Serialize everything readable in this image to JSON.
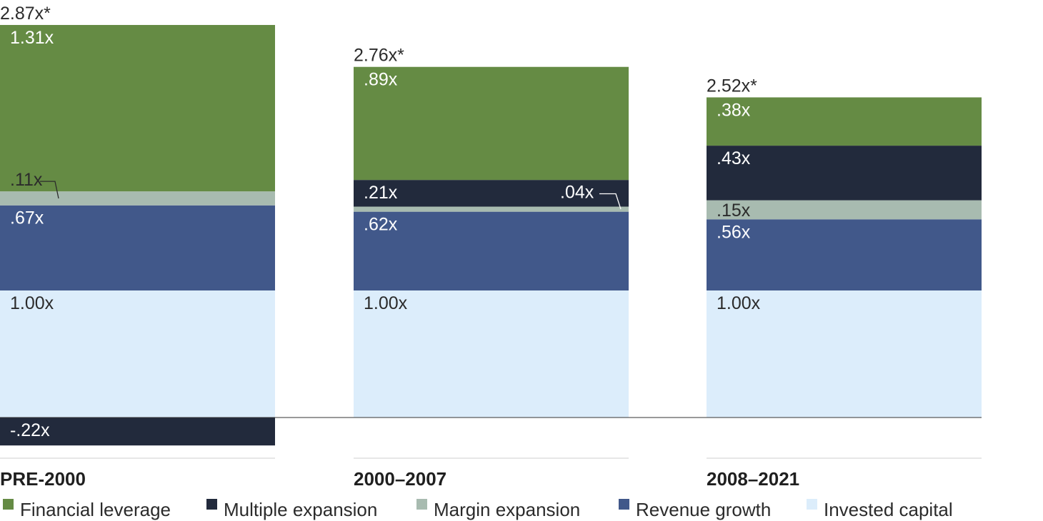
{
  "chart_data": {
    "type": "bar",
    "stacked": true,
    "categories": [
      "PRE-2000",
      "2000–2007",
      "2008–2021"
    ],
    "totals": [
      "2.87x*",
      "2.76x*",
      "2.52x*"
    ],
    "series": [
      {
        "name": "Invested capital",
        "color": "#dcedfb",
        "label_color": "#2b2b2b",
        "values": [
          1.0,
          1.0,
          1.0
        ],
        "labels": [
          "1.00x",
          "1.00x",
          "1.00x"
        ]
      },
      {
        "name": "Revenue growth",
        "color": "#41588a",
        "label_color": "#ffffff",
        "values": [
          0.67,
          0.62,
          0.56
        ],
        "labels": [
          ".67x",
          ".62x",
          ".56x"
        ]
      },
      {
        "name": "Margin expansion",
        "color": "#a8bbb0",
        "label_color": "#2b2b2b",
        "values": [
          0.11,
          0.04,
          0.15
        ],
        "labels": [
          ".11x",
          ".04x",
          ".15x"
        ]
      },
      {
        "name": "Multiple expansion",
        "color": "#222a3c",
        "label_color": "#ffffff",
        "values": [
          -0.22,
          0.21,
          0.43
        ],
        "labels": [
          "-.22x",
          ".21x",
          ".43x"
        ]
      },
      {
        "name": "Financial leverage",
        "color": "#658b44",
        "label_color": "#ffffff",
        "values": [
          1.31,
          0.89,
          0.38
        ],
        "labels": [
          "1.31x",
          ".89x",
          ".38x"
        ]
      }
    ],
    "legend_order": [
      "Financial leverage",
      "Multiple expansion",
      "Margin expansion",
      "Revenue growth",
      "Invested capital"
    ],
    "legend_position": "bottom",
    "grid": false
  }
}
